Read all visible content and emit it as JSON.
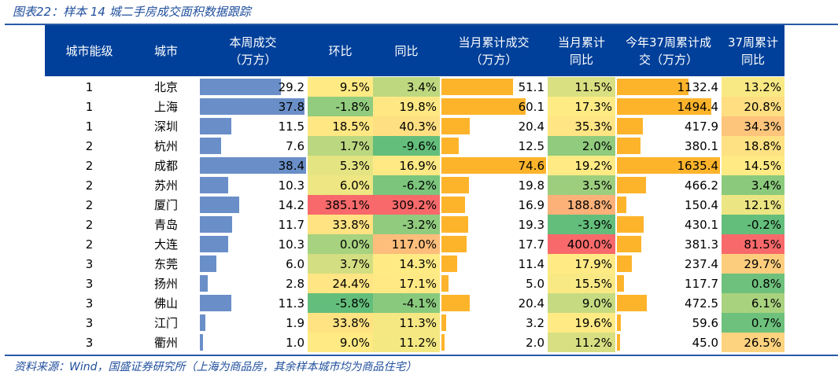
{
  "title": "图表22：样本 14 城二手房成交面积数据跟踪",
  "headers": [
    "城市能级",
    "城市",
    "本周成交\n（万方）",
    "环比",
    "同比",
    "当月累计成交\n（万方）",
    "当月累计\n同比",
    "今年37周累计成\n交（万方）",
    "37周累计\n同比"
  ],
  "colors": {
    "bar_blue": "#6a8fc8",
    "bar_orange": "#fdb42b",
    "green": "#63be7b",
    "yellow": "#ffeb84",
    "red": "#f8696b"
  },
  "rows": [
    [
      "1",
      "北京",
      "29.2",
      "9.5%",
      "3.4%",
      "51.1",
      "11.5%",
      "1132.4",
      "13.2%"
    ],
    [
      "1",
      "上海",
      "37.8",
      "-1.8%",
      "19.8%",
      "60.1",
      "17.3%",
      "1494.4",
      "20.8%"
    ],
    [
      "1",
      "深圳",
      "11.5",
      "18.5%",
      "40.3%",
      "20.4",
      "35.3%",
      "417.9",
      "34.3%"
    ],
    [
      "2",
      "杭州",
      "7.6",
      "1.7%",
      "-9.6%",
      "12.5",
      "2.0%",
      "380.1",
      "18.8%"
    ],
    [
      "2",
      "成都",
      "38.4",
      "5.3%",
      "16.9%",
      "74.6",
      "19.2%",
      "1635.4",
      "14.5%"
    ],
    [
      "2",
      "苏州",
      "10.3",
      "6.0%",
      "-6.2%",
      "19.8",
      "3.5%",
      "466.2",
      "3.4%"
    ],
    [
      "2",
      "厦门",
      "14.2",
      "385.1%",
      "309.2%",
      "16.9",
      "188.8%",
      "150.4",
      "12.1%"
    ],
    [
      "2",
      "青岛",
      "11.7",
      "33.8%",
      "-3.2%",
      "19.3",
      "-3.9%",
      "430.1",
      "-0.2%"
    ],
    [
      "2",
      "大连",
      "10.3",
      "0.0%",
      "117.0%",
      "17.7",
      "400.0%",
      "381.3",
      "81.5%"
    ],
    [
      "3",
      "东莞",
      "6.0",
      "3.7%",
      "14.3%",
      "11.4",
      "17.9%",
      "237.4",
      "29.7%"
    ],
    [
      "3",
      "扬州",
      "2.8",
      "24.4%",
      "17.1%",
      "5.0",
      "15.5%",
      "117.7",
      "0.8%"
    ],
    [
      "3",
      "佛山",
      "11.3",
      "-5.8%",
      "-4.1%",
      "20.4",
      "9.0%",
      "472.5",
      "6.1%"
    ],
    [
      "3",
      "江门",
      "1.9",
      "33.8%",
      "11.3%",
      "3.2",
      "19.6%",
      "59.6",
      "0.7%"
    ],
    [
      "3",
      "衢州",
      "1.0",
      "9.0%",
      "11.2%",
      "2.0",
      "11.2%",
      "45.0",
      "26.5%"
    ]
  ],
  "footer": "资料来源：Wind，国盛证券研究所（上海为商品房，其余样本城市均为商品住宅）"
}
